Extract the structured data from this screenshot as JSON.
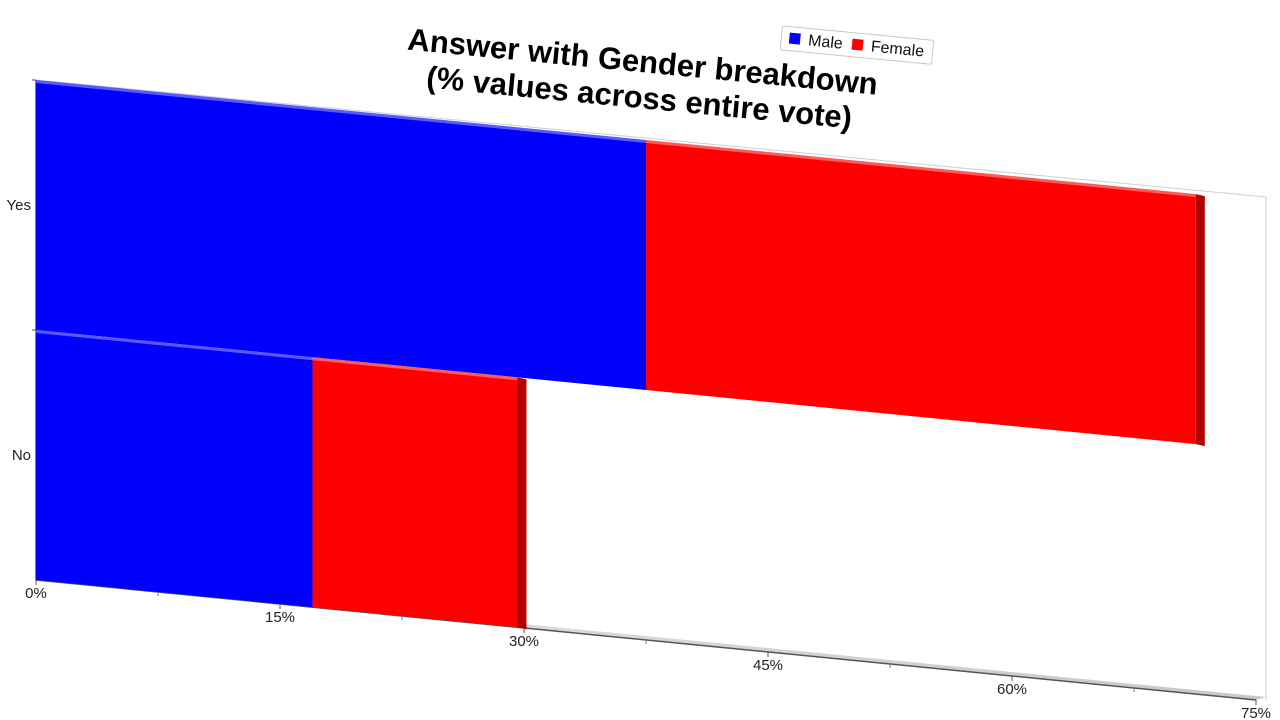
{
  "chart_data": {
    "type": "bar",
    "orientation": "horizontal",
    "stacked": true,
    "title": [
      "Answer with Gender breakdown",
      "(% values across entire vote)"
    ],
    "categories": [
      "Yes",
      "No"
    ],
    "series": [
      {
        "name": "Male",
        "values": [
          37.5,
          17
        ],
        "color": "#0000ff"
      },
      {
        "name": "Female",
        "values": [
          33.8,
          12.6
        ],
        "color": "#ff0000"
      }
    ],
    "x_ticks": [
      "0%",
      "15%",
      "30%",
      "45%",
      "60%",
      "75%"
    ],
    "xlim": [
      0,
      75
    ],
    "legend_position": "top-right",
    "grid": false
  }
}
